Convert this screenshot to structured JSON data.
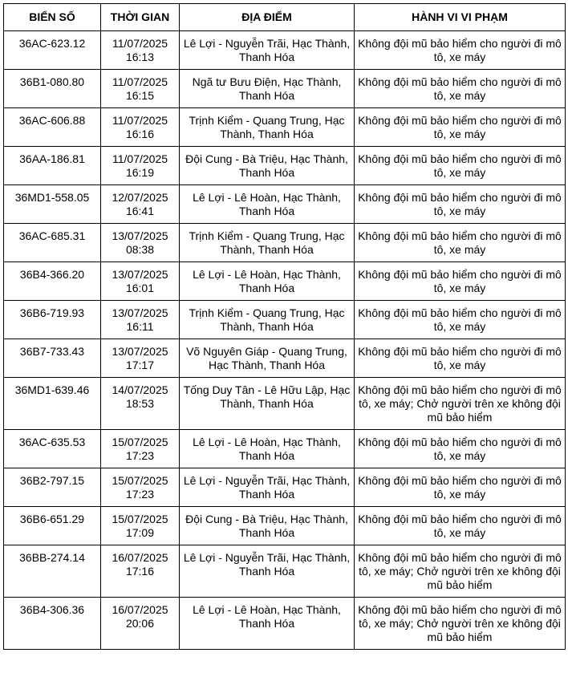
{
  "headers": [
    "BIỂN SỐ",
    "THỜI GIAN",
    "ĐỊA ĐIỂM",
    "HÀNH VI VI PHẠM"
  ],
  "rows": [
    {
      "plate": "36AC-623.12",
      "date": "11/07/2025",
      "time": "16:13",
      "location": "Lê Lợi - Nguyễn Trãi, Hạc Thành, Thanh Hóa",
      "violation": "Không đội mũ bảo hiểm cho người đi mô tô, xe máy"
    },
    {
      "plate": "36B1-080.80",
      "date": "11/07/2025",
      "time": "16:15",
      "location": "Ngã tư Bưu Điện, Hạc Thành, Thanh Hóa",
      "violation": "Không đội mũ bảo hiểm cho người đi mô tô, xe máy"
    },
    {
      "plate": "36AC-606.88",
      "date": "11/07/2025",
      "time": "16:16",
      "location": "Trịnh Kiểm - Quang Trung, Hạc Thành, Thanh Hóa",
      "violation": "Không đội mũ bảo hiểm cho người đi mô tô, xe máy"
    },
    {
      "plate": "36AA-186.81",
      "date": "11/07/2025",
      "time": "16:19",
      "location": "Đội Cung - Bà Triệu, Hạc Thành, Thanh Hóa",
      "violation": "Không đội mũ bảo hiểm cho người đi mô tô, xe máy"
    },
    {
      "plate": "36MD1-558.05",
      "date": "12/07/2025",
      "time": "16:41",
      "location": "Lê Lợi - Lê Hoàn, Hạc Thành, Thanh Hóa",
      "violation": "Không đội mũ bảo hiểm cho người đi mô tô, xe máy"
    },
    {
      "plate": "36AC-685.31",
      "date": "13/07/2025",
      "time": "08:38",
      "location": "Trịnh Kiểm - Quang Trung, Hạc Thành, Thanh Hóa",
      "violation": "Không đội mũ bảo hiểm cho người đi mô tô, xe máy"
    },
    {
      "plate": "36B4-366.20",
      "date": "13/07/2025",
      "time": "16:01",
      "location": "Lê Lợi - Lê Hoàn, Hạc Thành, Thanh Hóa",
      "violation": "Không đội mũ bảo hiểm cho người đi mô tô, xe máy"
    },
    {
      "plate": "36B6-719.93",
      "date": "13/07/2025",
      "time": "16:11",
      "location": "Trịnh Kiểm - Quang Trung, Hạc Thành, Thanh Hóa",
      "violation": "Không đội mũ bảo hiểm cho người đi mô tô, xe máy"
    },
    {
      "plate": "36B7-733.43",
      "date": "13/07/2025",
      "time": "17:17",
      "location": "Võ Nguyên Giáp - Quang Trung, Hạc Thành, Thanh Hóa",
      "violation": "Không đội mũ bảo hiểm cho người đi mô tô, xe máy"
    },
    {
      "plate": "36MD1-639.46",
      "date": "14/07/2025",
      "time": "18:53",
      "location": "Tống Duy Tân - Lê Hữu Lập, Hạc Thành, Thanh Hóa",
      "violation": "Không đội mũ bảo hiểm cho người đi mô tô, xe máy; Chở người trên xe không đội mũ bảo hiểm"
    },
    {
      "plate": "36AC-635.53",
      "date": "15/07/2025",
      "time": "17:23",
      "location": "Lê Lợi - Lê Hoàn, Hạc Thành, Thanh Hóa",
      "violation": "Không đội mũ bảo hiểm cho người đi mô tô, xe máy"
    },
    {
      "plate": "36B2-797.15",
      "date": "15/07/2025",
      "time": "17:23",
      "location": "Lê Lợi - Nguyễn Trãi, Hạc Thành, Thanh Hóa",
      "violation": "Không đội mũ bảo hiểm cho người đi mô tô, xe máy"
    },
    {
      "plate": "36B6-651.29",
      "date": "15/07/2025",
      "time": "17:09",
      "location": "Đội Cung - Bà Triệu, Hạc Thành, Thanh Hóa",
      "violation": "Không đội mũ bảo hiểm cho người đi mô tô, xe máy"
    },
    {
      "plate": "36BB-274.14",
      "date": "16/07/2025",
      "time": "17:16",
      "location": "Lê Lợi - Nguyễn Trãi, Hạc Thành, Thanh Hóa",
      "violation": "Không đội mũ bảo hiểm cho người đi mô tô, xe máy; Chở người trên xe không đội mũ bảo hiểm"
    },
    {
      "plate": "36B4-306.36",
      "date": "16/07/2025",
      "time": "20:06",
      "location": "Lê Lợi - Lê Hoàn, Hạc Thành, Thanh Hóa",
      "violation": "Không đội mũ bảo hiểm cho người đi mô tô, xe máy; Chở người trên xe không đội mũ bảo hiểm"
    }
  ]
}
